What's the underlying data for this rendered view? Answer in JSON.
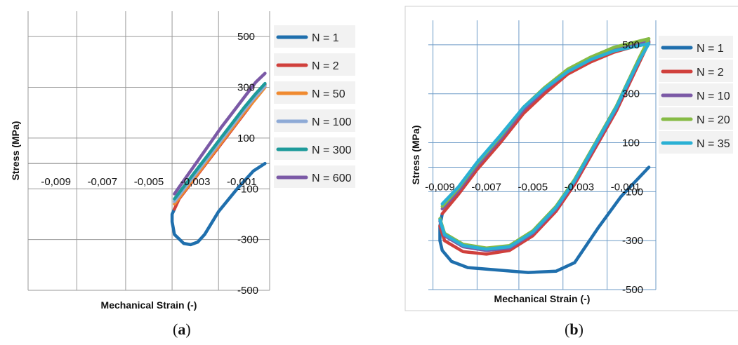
{
  "panels": [
    {
      "caption": "(a)",
      "caption_letter": "a"
    },
    {
      "caption": "(b)",
      "caption_letter": "b"
    }
  ],
  "chart_data": [
    {
      "type": "line",
      "xlabel": "Mechanical Strain (-)",
      "ylabel": "Stress (MPa)",
      "xlim": [
        -0.0102,
        0.0002
      ],
      "ylim": [
        -500,
        600
      ],
      "x_ticks": [
        -0.009,
        -0.007,
        -0.005,
        -0.003,
        -0.001
      ],
      "x_tick_labels": [
        "-0,009",
        "-0,007",
        "-0,005",
        "-0,003",
        "-0,001"
      ],
      "y_ticks": [
        500,
        300,
        100,
        -100,
        -300,
        -500
      ],
      "y_tick_labels": [
        "500",
        "300",
        "100",
        "-100",
        "-300",
        "-500"
      ],
      "grid": true,
      "legend_position": "right",
      "series": [
        {
          "name": "N = 1",
          "color": "#1f6fad",
          "points": [
            [
              0,
              0
            ],
            [
              -0.0005,
              -30
            ],
            [
              -0.0012,
              -100
            ],
            [
              -0.002,
              -190
            ],
            [
              -0.0026,
              -280
            ],
            [
              -0.0029,
              -310
            ],
            [
              -0.0032,
              -320
            ],
            [
              -0.0035,
              -315
            ],
            [
              -0.0039,
              -280
            ],
            [
              -0.004,
              -230
            ],
            [
              -0.004,
              -200
            ],
            [
              -0.0039,
              -180
            ]
          ]
        },
        {
          "name": "N = 2",
          "color": "#d0403c",
          "points": [
            [
              -0.0039,
              -180
            ],
            [
              -0.0037,
              -140
            ],
            [
              -0.0032,
              -80
            ],
            [
              -0.0027,
              -20
            ],
            [
              -0.0022,
              40
            ],
            [
              -0.0017,
              100
            ],
            [
              -0.0012,
              160
            ],
            [
              -0.0007,
              220
            ],
            [
              -0.0003,
              270
            ],
            [
              0,
              310
            ]
          ]
        },
        {
          "name": "N = 50",
          "color": "#f08a30",
          "points": [
            [
              -0.0039,
              -160
            ],
            [
              -0.0034,
              -100
            ],
            [
              -0.0029,
              -40
            ],
            [
              -0.0024,
              20
            ],
            [
              -0.0019,
              80
            ],
            [
              -0.0014,
              140
            ],
            [
              -0.0009,
              200
            ],
            [
              -0.0004,
              255
            ],
            [
              0,
              300
            ]
          ]
        },
        {
          "name": "N = 100",
          "color": "#8eaad6",
          "points": [
            [
              -0.0039,
              -150
            ],
            [
              -0.0034,
              -90
            ],
            [
              -0.0029,
              -30
            ],
            [
              -0.0024,
              30
            ],
            [
              -0.0019,
              90
            ],
            [
              -0.0014,
              150
            ],
            [
              -0.0009,
              210
            ],
            [
              -0.0004,
              265
            ],
            [
              0,
              305
            ]
          ]
        },
        {
          "name": "N = 300",
          "color": "#1e9a9a",
          "points": [
            [
              -0.0039,
              -140
            ],
            [
              -0.0034,
              -80
            ],
            [
              -0.0029,
              -20
            ],
            [
              -0.0024,
              40
            ],
            [
              -0.0019,
              100
            ],
            [
              -0.0014,
              160
            ],
            [
              -0.0009,
              220
            ],
            [
              -0.0004,
              275
            ],
            [
              0,
              315
            ]
          ]
        },
        {
          "name": "N = 600",
          "color": "#7b59a6",
          "points": [
            [
              -0.0039,
              -120
            ],
            [
              -0.0034,
              -55
            ],
            [
              -0.0029,
              10
            ],
            [
              -0.0024,
              75
            ],
            [
              -0.0019,
              140
            ],
            [
              -0.0014,
              200
            ],
            [
              -0.0009,
              260
            ],
            [
              -0.0004,
              320
            ],
            [
              0,
              355
            ]
          ]
        }
      ]
    },
    {
      "type": "line",
      "xlabel": "Mechanical Strain (-)",
      "ylabel": "Stress (MPa)",
      "xlim": [
        -0.0095,
        0.0003
      ],
      "ylim": [
        -500,
        600
      ],
      "x_ticks": [
        -0.009,
        -0.007,
        -0.005,
        -0.003,
        -0.001
      ],
      "x_tick_labels": [
        "-0,009",
        "-0,007",
        "-0,005",
        "-0,003",
        "-0,001"
      ],
      "y_ticks": [
        500,
        300,
        100,
        -100,
        -300,
        -500
      ],
      "y_tick_labels": [
        "500",
        "300",
        "100",
        "-100",
        "-300",
        "-500"
      ],
      "grid": true,
      "legend_position": "right",
      "series": [
        {
          "name": "N = 1",
          "color": "#1f6fad",
          "points": [
            [
              0,
              0
            ],
            [
              -0.0012,
              -120
            ],
            [
              -0.0022,
              -250
            ],
            [
              -0.0032,
              -390
            ],
            [
              -0.004,
              -425
            ],
            [
              -0.0052,
              -430
            ],
            [
              -0.0065,
              -420
            ],
            [
              -0.0078,
              -410
            ],
            [
              -0.0085,
              -385
            ],
            [
              -0.0089,
              -340
            ],
            [
              -0.009,
              -300
            ],
            [
              -0.009,
              -240
            ],
            [
              -0.0089,
              -190
            ]
          ]
        },
        {
          "name": "N = 2",
          "color": "#d0403c",
          "points": [
            [
              -0.0089,
              -190
            ],
            [
              -0.0082,
              -110
            ],
            [
              -0.0074,
              -10
            ],
            [
              -0.0064,
              100
            ],
            [
              -0.0054,
              220
            ],
            [
              -0.0045,
              300
            ],
            [
              -0.0035,
              380
            ],
            [
              -0.0025,
              430
            ],
            [
              -0.0015,
              470
            ],
            [
              0,
              510
            ],
            [
              -0.0004,
              430
            ],
            [
              -0.0009,
              330
            ],
            [
              -0.0014,
              230
            ],
            [
              -0.002,
              130
            ],
            [
              -0.0026,
              30
            ],
            [
              -0.0032,
              -70
            ],
            [
              -0.004,
              -180
            ],
            [
              -0.005,
              -280
            ],
            [
              -0.006,
              -340
            ],
            [
              -0.007,
              -355
            ],
            [
              -0.008,
              -345
            ],
            [
              -0.0088,
              -300
            ],
            [
              -0.009,
              -240
            ]
          ]
        },
        {
          "name": "N = 10",
          "color": "#7b59a6",
          "points": [
            [
              -0.0089,
              -170
            ],
            [
              -0.0082,
              -95
            ],
            [
              -0.0074,
              5
            ],
            [
              -0.0064,
              115
            ],
            [
              -0.0054,
              235
            ],
            [
              -0.0045,
              315
            ],
            [
              -0.0035,
              390
            ],
            [
              -0.0025,
              440
            ],
            [
              -0.0015,
              480
            ],
            [
              0,
              515
            ],
            [
              -0.0004,
              440
            ],
            [
              -0.0009,
              340
            ],
            [
              -0.0014,
              240
            ],
            [
              -0.002,
              140
            ],
            [
              -0.0026,
              40
            ],
            [
              -0.0032,
              -60
            ],
            [
              -0.004,
              -170
            ],
            [
              -0.005,
              -270
            ],
            [
              -0.006,
              -330
            ],
            [
              -0.007,
              -340
            ],
            [
              -0.008,
              -325
            ],
            [
              -0.0088,
              -280
            ],
            [
              -0.009,
              -220
            ]
          ]
        },
        {
          "name": "N = 20",
          "color": "#86bb45",
          "points": [
            [
              -0.0089,
              -160
            ],
            [
              -0.0082,
              -85
            ],
            [
              -0.0074,
              15
            ],
            [
              -0.0064,
              125
            ],
            [
              -0.0054,
              245
            ],
            [
              -0.0045,
              325
            ],
            [
              -0.0035,
              400
            ],
            [
              -0.0025,
              450
            ],
            [
              -0.0015,
              490
            ],
            [
              0,
              525
            ],
            [
              -0.0004,
              450
            ],
            [
              -0.0009,
              350
            ],
            [
              -0.0014,
              250
            ],
            [
              -0.002,
              150
            ],
            [
              -0.0026,
              50
            ],
            [
              -0.0032,
              -50
            ],
            [
              -0.004,
              -160
            ],
            [
              -0.005,
              -260
            ],
            [
              -0.006,
              -320
            ],
            [
              -0.007,
              -330
            ],
            [
              -0.008,
              -315
            ],
            [
              -0.0088,
              -270
            ],
            [
              -0.009,
              -210
            ]
          ]
        },
        {
          "name": "N = 35",
          "color": "#2ab0d4",
          "points": [
            [
              -0.0089,
              -150
            ],
            [
              -0.0082,
              -80
            ],
            [
              -0.0074,
              20
            ],
            [
              -0.0064,
              130
            ],
            [
              -0.0054,
              245
            ],
            [
              -0.0045,
              320
            ],
            [
              -0.0035,
              390
            ],
            [
              -0.0025,
              440
            ],
            [
              -0.0015,
              475
            ],
            [
              0,
              505
            ],
            [
              -0.0004,
              440
            ],
            [
              -0.0009,
              345
            ],
            [
              -0.0014,
              245
            ],
            [
              -0.002,
              145
            ],
            [
              -0.0026,
              45
            ],
            [
              -0.0032,
              -55
            ],
            [
              -0.004,
              -165
            ],
            [
              -0.005,
              -265
            ],
            [
              -0.006,
              -325
            ],
            [
              -0.007,
              -335
            ],
            [
              -0.008,
              -320
            ],
            [
              -0.0088,
              -275
            ],
            [
              -0.009,
              -215
            ]
          ]
        }
      ]
    }
  ]
}
